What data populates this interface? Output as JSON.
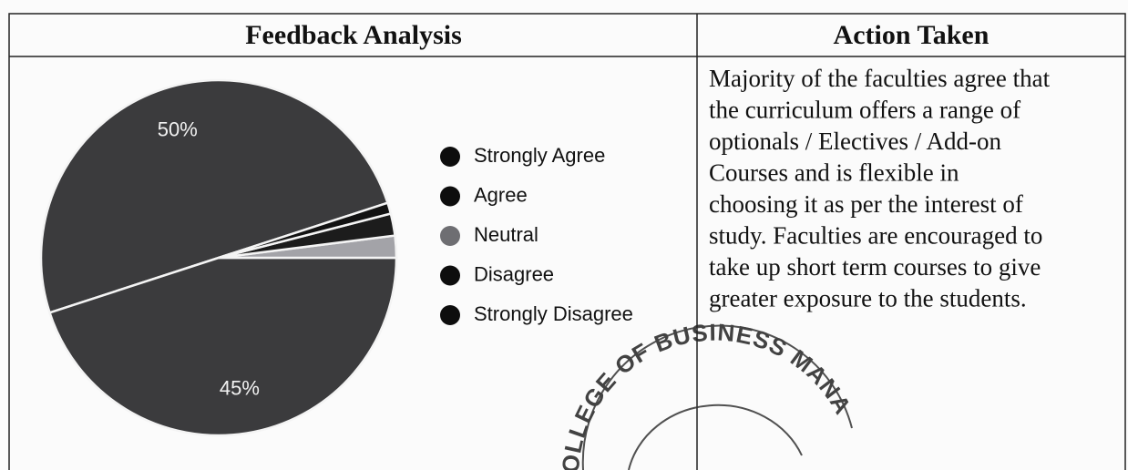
{
  "table": {
    "headers": [
      "Feedback Analysis",
      "Action Taken"
    ],
    "chart": {
      "type": "pie",
      "categories": [
        "Strongly Agree",
        "Agree",
        "Neutral",
        "Disagree",
        "Strongly Disagree"
      ],
      "values": [
        50,
        45,
        2,
        2,
        1
      ],
      "value_labels": [
        "50%",
        "45%",
        null,
        null,
        null
      ],
      "colors": [
        "#3b3b3d",
        "#3b3b3d",
        "#a3a3a8",
        "#1c1c1c",
        "#121212"
      ],
      "legend_colors": [
        "#0d0d0d",
        "#0d0d0d",
        "#6e6e72",
        "#0d0d0d",
        "#0d0d0d"
      ]
    },
    "action_text": [
      "Majority of the faculties agree that",
      "the curriculum offers a range of",
      "optionals / Electives / Add-on",
      "Courses and is flexible in",
      "choosing it as per the interest of",
      "study. Faculties are encouraged to",
      "take up short term courses to give",
      "greater exposure to the students."
    ],
    "stamp": "OLLEGE OF BUSINESS MANA"
  }
}
